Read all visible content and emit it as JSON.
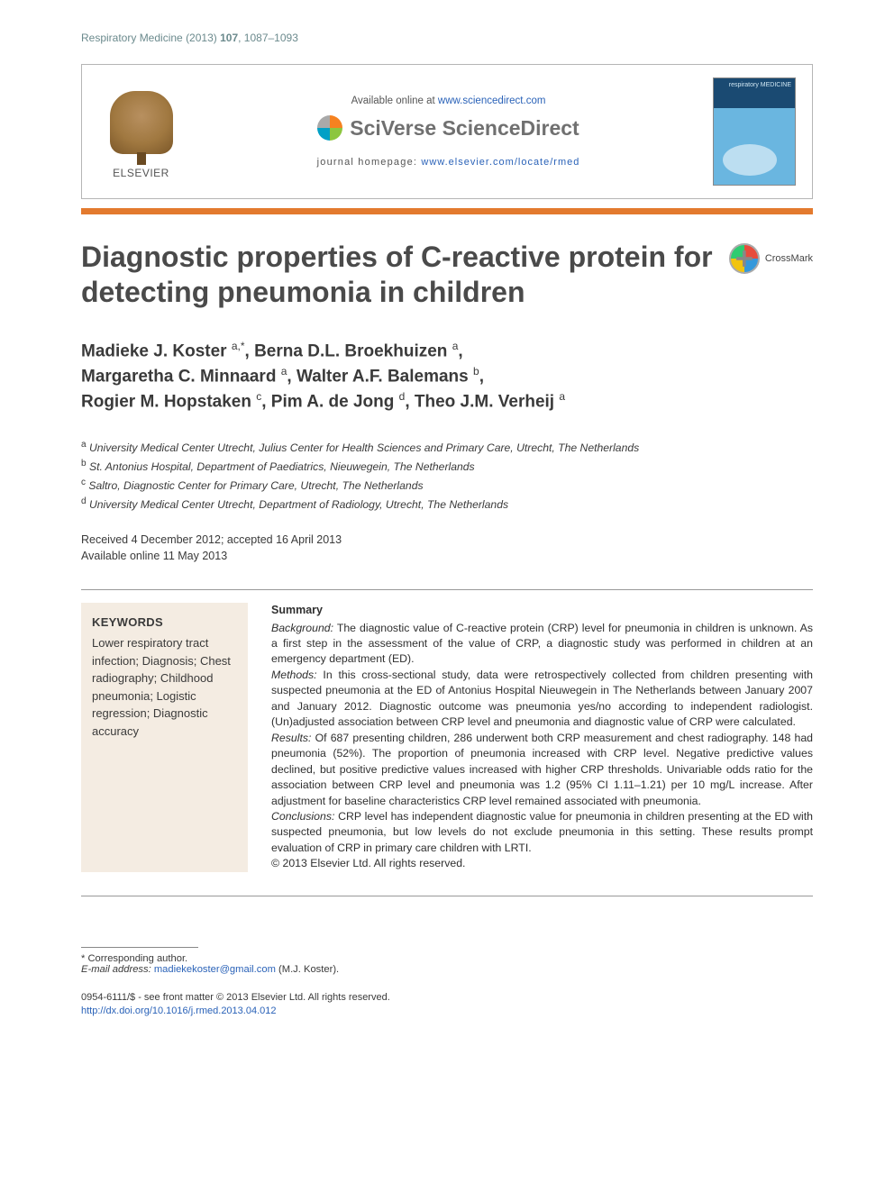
{
  "runningHead": {
    "journal": "Respiratory Medicine",
    "year": "(2013)",
    "volume": "107",
    "pages": "1087–1093"
  },
  "topBox": {
    "elsevierWord": "ELSEVIER",
    "available": "Available online at ",
    "availableUrl": "www.sciencedirect.com",
    "brand": "SciVerse ScienceDirect",
    "homepageLabel": "journal homepage: ",
    "homepageUrl": "www.elsevier.com/locate/rmed",
    "coverLabel": "respiratory MEDICINE"
  },
  "title": "Diagnostic properties of C-reactive protein for detecting pneumonia in children",
  "crossmark": "CrossMark",
  "authorsHtml": "Madieke J. Koster <sup>a,*</sup>, Berna D.L. Broekhuizen <sup>a</sup>,<br>Margaretha C. Minnaard <sup>a</sup>, Walter A.F. Balemans <sup>b</sup>,<br>Rogier M. Hopstaken <sup>c</sup>, Pim A. de Jong <sup>d</sup>, Theo J.M. Verheij <sup>a</sup>",
  "affiliations": [
    {
      "sup": "a",
      "text": "University Medical Center Utrecht, Julius Center for Health Sciences and Primary Care, Utrecht, The Netherlands"
    },
    {
      "sup": "b",
      "text": "St. Antonius Hospital, Department of Paediatrics, Nieuwegein, The Netherlands"
    },
    {
      "sup": "c",
      "text": "Saltro, Diagnostic Center for Primary Care, Utrecht, The Netherlands"
    },
    {
      "sup": "d",
      "text": "University Medical Center Utrecht, Department of Radiology, Utrecht, The Netherlands"
    }
  ],
  "dates": {
    "line1": "Received 4 December 2012; accepted 16 April 2013",
    "line2": "Available online 11 May 2013"
  },
  "keywords": {
    "heading": "KEYWORDS",
    "list": "Lower respiratory tract infection; Diagnosis; Chest radiography; Childhood pneumonia; Logistic regression; Diagnostic accuracy"
  },
  "abstract": {
    "heading": "Summary",
    "background": "The diagnostic value of C-reactive protein (CRP) level for pneumonia in children is unknown. As a first step in the assessment of the value of CRP, a diagnostic study was performed in children at an emergency department (ED).",
    "methods": "In this cross-sectional study, data were retrospectively collected from children presenting with suspected pneumonia at the ED of Antonius Hospital Nieuwegein in The Netherlands between January 2007 and January 2012. Diagnostic outcome was pneumonia yes/no according to independent radiologist. (Un)adjusted association between CRP level and pneumonia and diagnostic value of CRP were calculated.",
    "results": "Of 687 presenting children, 286 underwent both CRP measurement and chest radiography. 148 had pneumonia (52%). The proportion of pneumonia increased with CRP level. Negative predictive values declined, but positive predictive values increased with higher CRP thresholds. Univariable odds ratio for the association between CRP level and pneumonia was 1.2 (95% CI 1.11–1.21) per 10 mg/L increase. After adjustment for baseline characteristics CRP level remained associated with pneumonia.",
    "conclusions": "CRP level has independent diagnostic value for pneumonia in children presenting at the ED with suspected pneumonia, but low levels do not exclude pneumonia in this setting. These results prompt evaluation of CRP in primary care children with LRTI.",
    "copyright": "© 2013 Elsevier Ltd. All rights reserved.",
    "labels": {
      "background": "Background:",
      "methods": "Methods:",
      "results": "Results:",
      "conclusions": "Conclusions:"
    }
  },
  "footnotes": {
    "corresponding": "* Corresponding author.",
    "emailLabel": "E-mail address: ",
    "email": "madiekekoster@gmail.com",
    "emailTail": " (M.J. Koster).",
    "issn": "0954-6111/$ - see front matter © 2013 Elsevier Ltd. All rights reserved.",
    "doi": "http://dx.doi.org/10.1016/j.rmed.2013.04.012"
  },
  "colors": {
    "orangeBar": "#e37a2e",
    "link": "#2a62b8",
    "kwBg": "#f4ece2"
  }
}
